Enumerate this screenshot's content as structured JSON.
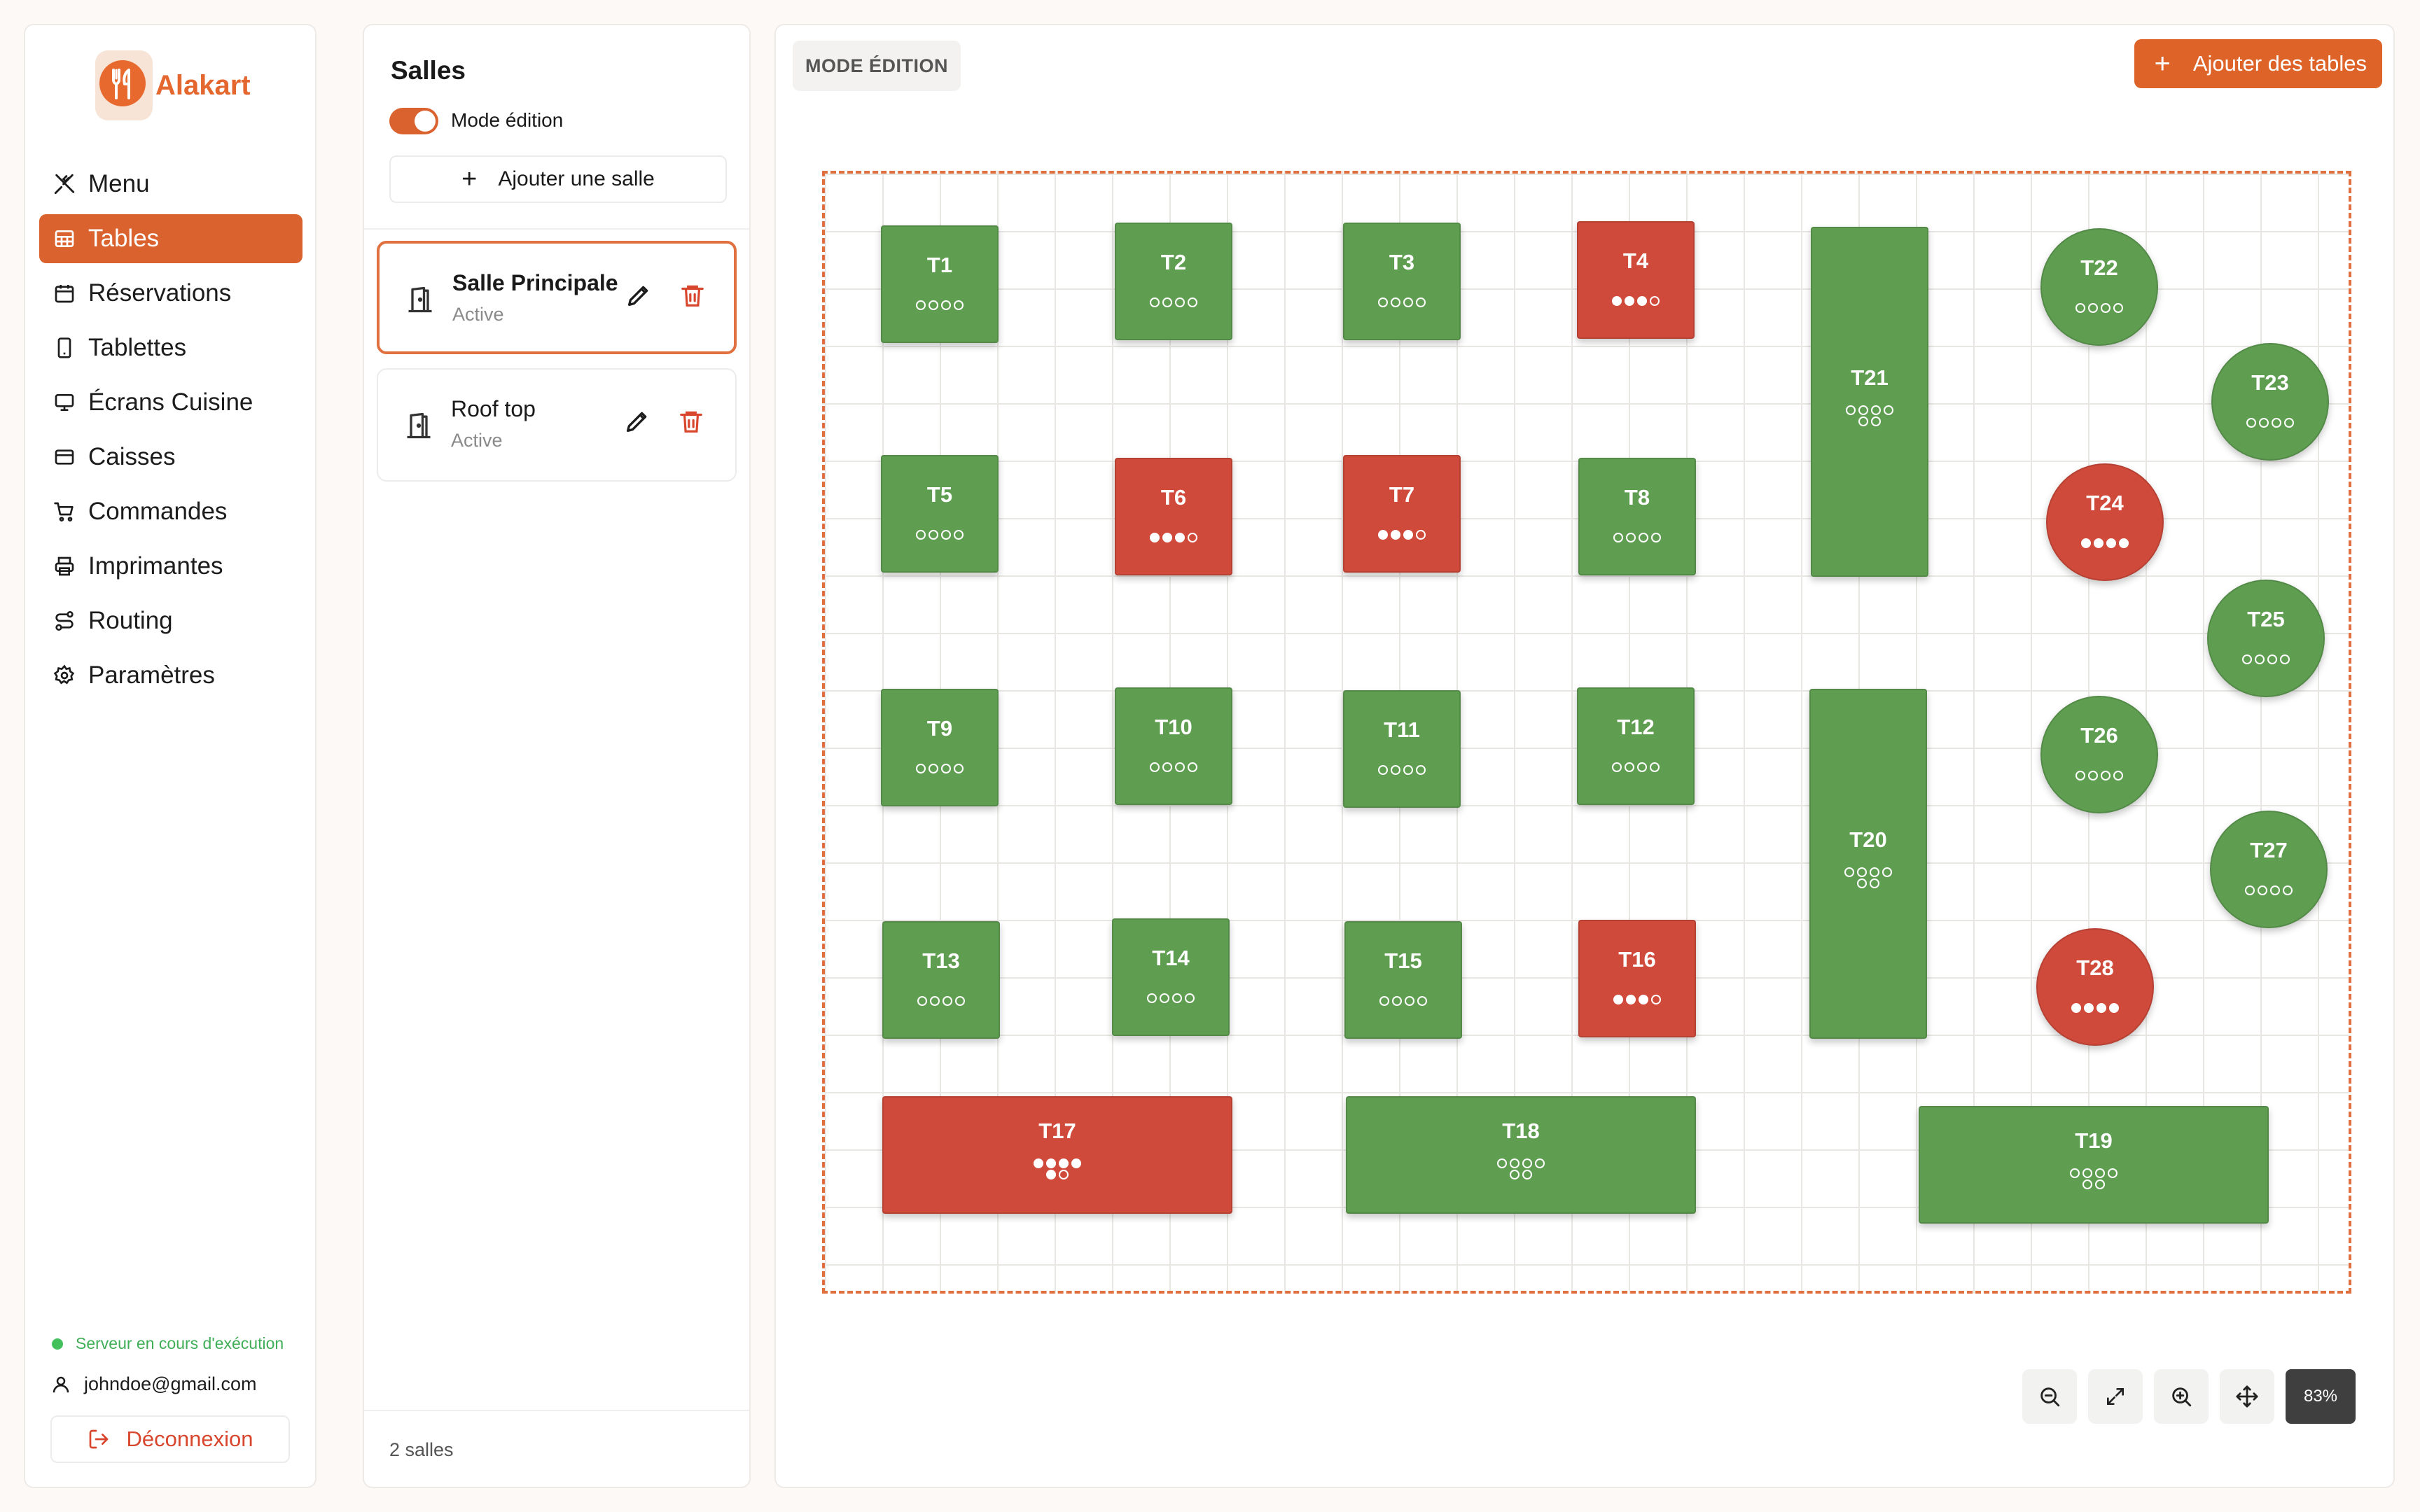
{
  "app": {
    "name": "Alakart"
  },
  "nav": {
    "items": [
      {
        "label": "Menu",
        "icon": "utensils-crossed-icon"
      },
      {
        "label": "Tables",
        "icon": "table-grid-icon",
        "active": true
      },
      {
        "label": "Réservations",
        "icon": "calendar-icon"
      },
      {
        "label": "Tablettes",
        "icon": "tablet-icon"
      },
      {
        "label": "Écrans Cuisine",
        "icon": "monitor-icon"
      },
      {
        "label": "Caisses",
        "icon": "credit-card-icon"
      },
      {
        "label": "Commandes",
        "icon": "cart-icon"
      },
      {
        "label": "Imprimantes",
        "icon": "printer-icon"
      },
      {
        "label": "Routing",
        "icon": "route-icon"
      },
      {
        "label": "Paramètres",
        "icon": "gear-icon"
      }
    ],
    "server_status": "Serveur en cours d'exécution",
    "user_email": "johndoe@gmail.com",
    "logout_label": "Déconnexion"
  },
  "rooms": {
    "title": "Salles",
    "edit_mode_label": "Mode édition",
    "edit_mode_on": true,
    "add_room_label": "Ajouter une salle",
    "list": [
      {
        "name": "Salle Principale",
        "status": "Active",
        "selected": true
      },
      {
        "name": "Roof top",
        "status": "Active",
        "selected": false
      }
    ],
    "count_label": "2 salles"
  },
  "editor": {
    "mode_label": "MODE ÉDITION",
    "add_tables_label": "Ajouter des tables",
    "zoom_level": "83%",
    "tables": [
      {
        "name": "T1",
        "status": "free",
        "seats": 4,
        "occupied": 0
      },
      {
        "name": "T2",
        "status": "free",
        "seats": 4,
        "occupied": 0
      },
      {
        "name": "T3",
        "status": "free",
        "seats": 4,
        "occupied": 0
      },
      {
        "name": "T4",
        "status": "busy",
        "seats": 4,
        "occupied": 3
      },
      {
        "name": "T5",
        "status": "free",
        "seats": 4,
        "occupied": 0
      },
      {
        "name": "T6",
        "status": "busy",
        "seats": 4,
        "occupied": 3
      },
      {
        "name": "T7",
        "status": "busy",
        "seats": 4,
        "occupied": 3
      },
      {
        "name": "T8",
        "status": "free",
        "seats": 4,
        "occupied": 0
      },
      {
        "name": "T9",
        "status": "free",
        "seats": 4,
        "occupied": 0
      },
      {
        "name": "T10",
        "status": "free",
        "seats": 4,
        "occupied": 0
      },
      {
        "name": "T11",
        "status": "free",
        "seats": 4,
        "occupied": 0
      },
      {
        "name": "T12",
        "status": "free",
        "seats": 4,
        "occupied": 0
      },
      {
        "name": "T13",
        "status": "free",
        "seats": 4,
        "occupied": 0
      },
      {
        "name": "T14",
        "status": "free",
        "seats": 4,
        "occupied": 0
      },
      {
        "name": "T15",
        "status": "free",
        "seats": 4,
        "occupied": 0
      },
      {
        "name": "T16",
        "status": "busy",
        "seats": 4,
        "occupied": 3
      },
      {
        "name": "T17",
        "status": "busy",
        "seats": 6,
        "occupied": 5
      },
      {
        "name": "T18",
        "status": "free",
        "seats": 6,
        "occupied": 0
      },
      {
        "name": "T19",
        "status": "free",
        "seats": 6,
        "occupied": 0
      },
      {
        "name": "T20",
        "status": "free",
        "seats": 6,
        "occupied": 0
      },
      {
        "name": "T21",
        "status": "free",
        "seats": 6,
        "occupied": 0
      },
      {
        "name": "T22",
        "status": "free",
        "seats": 4,
        "occupied": 0
      },
      {
        "name": "T23",
        "status": "free",
        "seats": 4,
        "occupied": 0
      },
      {
        "name": "T24",
        "status": "busy",
        "seats": 4,
        "occupied": 4
      },
      {
        "name": "T25",
        "status": "free",
        "seats": 4,
        "occupied": 0
      },
      {
        "name": "T26",
        "status": "free",
        "seats": 4,
        "occupied": 0
      },
      {
        "name": "T27",
        "status": "free",
        "seats": 4,
        "occupied": 0
      },
      {
        "name": "T28",
        "status": "busy",
        "seats": 4,
        "occupied": 4
      }
    ]
  },
  "colors": {
    "accent": "#d9622e",
    "table_free": "#5f9e51",
    "table_busy": "#d04a3b",
    "danger": "#d9462e",
    "online": "#41c05c"
  }
}
